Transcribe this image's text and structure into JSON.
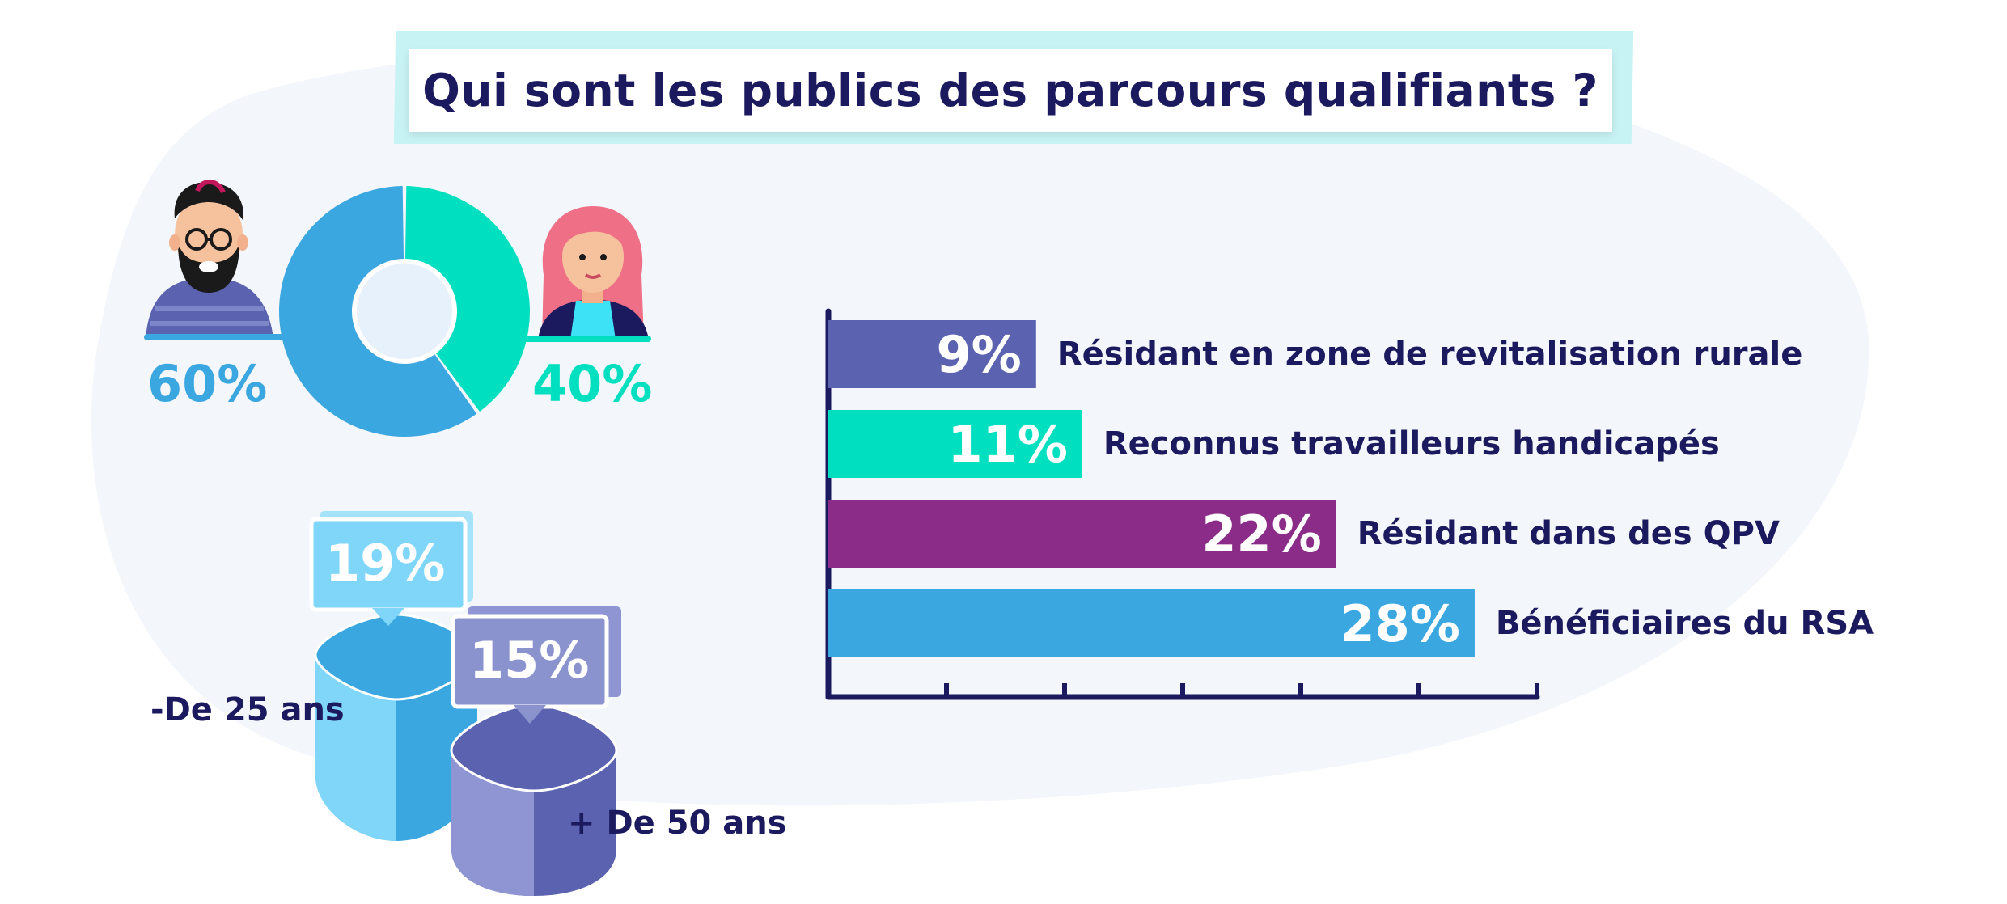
{
  "title": "Qui sont les publics des parcours qualifiants ?",
  "colors": {
    "navy": "#1c1a5e",
    "blue": "#3aa7e0",
    "teal": "#00dfc0",
    "purple_blue": "#5b63b0",
    "violet": "#8b2d88",
    "light_blue": "#7fd6f9",
    "background_blob": "#f3f7fb"
  },
  "gender": {
    "men_pct": "60%",
    "women_pct": "40%",
    "men_icon": "man-avatar-icon",
    "women_icon": "woman-avatar-icon"
  },
  "age": {
    "under25_pct": "19%",
    "under25_label": "-De 25 ans",
    "over50_pct": "15%",
    "over50_label": "+ De 50 ans"
  },
  "chart_data": [
    {
      "type": "pie",
      "categories": [
        "Hommes",
        "Femmes"
      ],
      "values": [
        60,
        40
      ],
      "data_labels": [
        "60%",
        "40%"
      ],
      "colors": [
        "#3aa7e0",
        "#00dfc0"
      ],
      "style": "donut"
    },
    {
      "type": "bar",
      "orientation": "horizontal",
      "categories": [
        "Résidant en zone de revitalisation rurale",
        "Reconnus travailleurs handicapés",
        "Résidant dans des QPV",
        "Bénéficiaires du RSA"
      ],
      "values": [
        9,
        11,
        22,
        28
      ],
      "data_labels": [
        "9%",
        "11%",
        "22%",
        "28%"
      ],
      "colors": [
        "#5b63b0",
        "#00dfc0",
        "#8b2d88",
        "#3aa7e0"
      ],
      "xlim": [
        0,
        30
      ],
      "grid": false
    },
    {
      "type": "bar",
      "categories": [
        "-De 25 ans",
        "+ De 50 ans"
      ],
      "values": [
        19,
        15
      ],
      "data_labels": [
        "19%",
        "15%"
      ],
      "colors": [
        "#3aa7e0",
        "#5b63b0"
      ],
      "style": "3d-blocks"
    }
  ]
}
